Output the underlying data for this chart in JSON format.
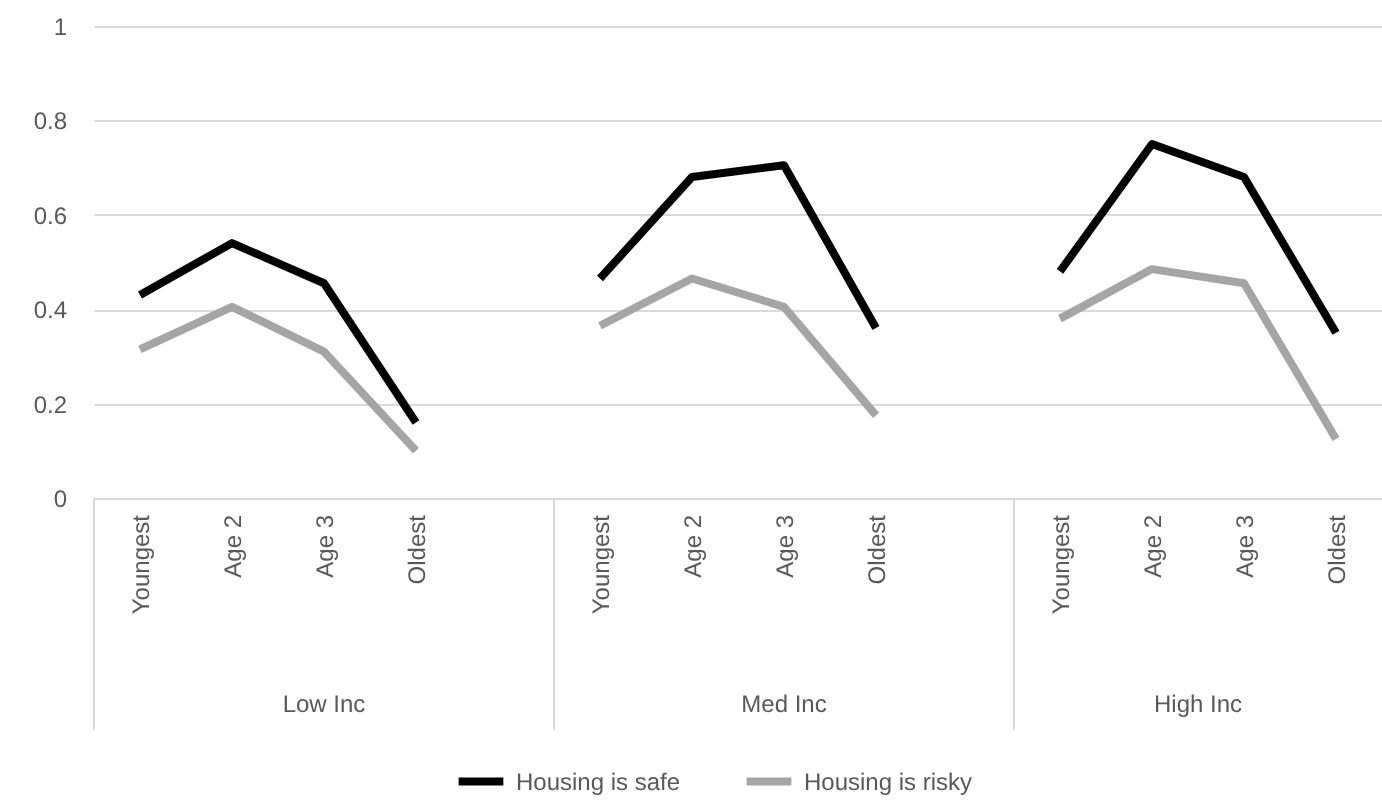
{
  "chart_data": {
    "type": "line",
    "categories": [
      "Youngest",
      "Age 2",
      "Age 3",
      "Oldest",
      null,
      "Youngest",
      "Age 2",
      "Age 3",
      "Oldest",
      null,
      "Youngest",
      "Age 2",
      "Age 3",
      "Oldest"
    ],
    "series": [
      {
        "name": "Housing is safe",
        "color": "#000000",
        "values": [
          0.43,
          0.54,
          0.455,
          0.16,
          null,
          0.465,
          0.68,
          0.705,
          0.36,
          null,
          0.48,
          0.75,
          0.68,
          0.35
        ]
      },
      {
        "name": "Housing is risky",
        "color": "#a5a5a5",
        "values": [
          0.315,
          0.405,
          0.31,
          0.1,
          null,
          0.365,
          0.465,
          0.405,
          0.175,
          null,
          0.38,
          0.485,
          0.455,
          0.125
        ]
      }
    ],
    "annotations": [
      "Low Inc",
      "Med Inc",
      "High Inc"
    ],
    "ylim": [
      0,
      1
    ],
    "yticks": [
      0,
      0.2,
      0.4,
      0.6,
      0.8,
      1
    ],
    "grid": "y",
    "legend": "bottom",
    "marker": "none",
    "line_style": "solid"
  }
}
